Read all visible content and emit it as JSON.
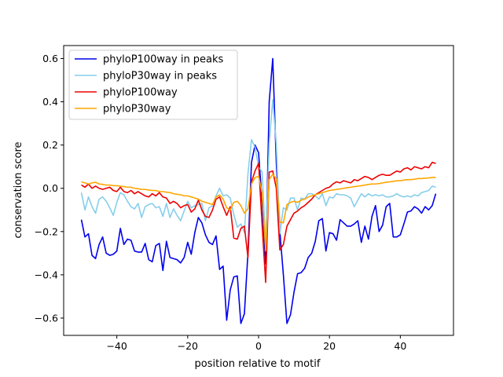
{
  "chart_data": {
    "type": "line",
    "title": "",
    "xlabel": "position relative to motif",
    "ylabel": "conservation score",
    "xlim": [
      -55.0,
      55.0
    ],
    "ylim": [
      -0.68,
      0.66
    ],
    "xticks": [
      -40,
      -20,
      0,
      20,
      40
    ],
    "yticks": [
      -0.6,
      -0.4,
      -0.2,
      0.0,
      0.2,
      0.4,
      0.6
    ],
    "xtick_labels": [
      "−40",
      "−20",
      "0",
      "20",
      "40"
    ],
    "ytick_labels": [
      "−0.6",
      "−0.4",
      "−0.2",
      "0.0",
      "0.2",
      "0.4",
      "0.6"
    ],
    "legend_position": "upper-left",
    "x": [
      -50,
      -49,
      -48,
      -47,
      -46,
      -45,
      -44,
      -43,
      -42,
      -41,
      -40,
      -39,
      -38,
      -37,
      -36,
      -35,
      -34,
      -33,
      -32,
      -31,
      -30,
      -29,
      -28,
      -27,
      -26,
      -25,
      -24,
      -23,
      -22,
      -21,
      -20,
      -19,
      -18,
      -17,
      -16,
      -15,
      -14,
      -13,
      -12,
      -11,
      -10,
      -9,
      -8,
      -7,
      -6,
      -5,
      -4,
      -3,
      -2,
      -1,
      0,
      1,
      2,
      3,
      4,
      5,
      6,
      7,
      8,
      9,
      10,
      11,
      12,
      13,
      14,
      15,
      16,
      17,
      18,
      19,
      20,
      21,
      22,
      23,
      24,
      25,
      26,
      27,
      28,
      29,
      30,
      31,
      32,
      33,
      34,
      35,
      36,
      37,
      38,
      39,
      40,
      41,
      42,
      43,
      44,
      45,
      46,
      47,
      48,
      49,
      50
    ],
    "series": [
      {
        "name": "phyloP100way in peaks",
        "color": "#0000ee",
        "values": [
          -0.145,
          -0.225,
          -0.21,
          -0.31,
          -0.325,
          -0.26,
          -0.225,
          -0.3,
          -0.31,
          -0.305,
          -0.29,
          -0.185,
          -0.26,
          -0.235,
          -0.24,
          -0.29,
          -0.295,
          -0.295,
          -0.255,
          -0.33,
          -0.34,
          -0.265,
          -0.255,
          -0.38,
          -0.245,
          -0.32,
          -0.325,
          -0.33,
          -0.345,
          -0.32,
          -0.25,
          -0.305,
          -0.205,
          -0.135,
          -0.16,
          -0.215,
          -0.25,
          -0.26,
          -0.22,
          -0.375,
          -0.36,
          -0.61,
          -0.47,
          -0.41,
          -0.405,
          -0.625,
          -0.58,
          -0.3,
          0.12,
          0.2,
          0.165,
          -0.065,
          -0.35,
          0.4,
          0.6,
          0.12,
          -0.2,
          -0.4,
          -0.625,
          -0.585,
          -0.48,
          -0.395,
          -0.39,
          -0.37,
          -0.32,
          -0.3,
          -0.245,
          -0.15,
          -0.14,
          -0.29,
          -0.205,
          -0.21,
          -0.24,
          -0.145,
          -0.16,
          -0.175,
          -0.175,
          -0.165,
          -0.15,
          -0.25,
          -0.175,
          -0.235,
          -0.13,
          -0.08,
          -0.2,
          -0.17,
          -0.085,
          -0.07,
          -0.225,
          -0.225,
          -0.215,
          -0.165,
          -0.11,
          -0.105,
          -0.085,
          -0.095,
          -0.115,
          -0.085,
          -0.1,
          -0.08,
          -0.025
        ]
      },
      {
        "name": "phyloP30way in peaks",
        "color": "#87ceeb",
        "values": [
          -0.02,
          -0.1,
          -0.04,
          -0.085,
          -0.115,
          -0.05,
          -0.04,
          -0.06,
          -0.09,
          -0.125,
          -0.065,
          -0.02,
          -0.03,
          -0.06,
          -0.085,
          -0.095,
          -0.07,
          -0.135,
          -0.085,
          -0.075,
          -0.07,
          -0.09,
          -0.085,
          -0.13,
          -0.07,
          -0.135,
          -0.095,
          -0.125,
          -0.15,
          -0.105,
          -0.06,
          -0.09,
          -0.08,
          -0.075,
          -0.07,
          -0.15,
          -0.09,
          -0.08,
          -0.035,
          0.0,
          -0.035,
          -0.03,
          -0.045,
          -0.12,
          -0.18,
          -0.165,
          -0.205,
          0.065,
          0.225,
          0.19,
          0.1,
          0.075,
          -0.26,
          0.21,
          0.41,
          0.205,
          -0.21,
          -0.09,
          -0.1,
          -0.045,
          -0.045,
          -0.1,
          -0.045,
          -0.05,
          -0.025,
          -0.025,
          -0.035,
          -0.05,
          -0.025,
          -0.08,
          -0.04,
          -0.045,
          -0.025,
          -0.03,
          -0.03,
          -0.035,
          -0.045,
          -0.085,
          -0.055,
          -0.025,
          -0.04,
          -0.025,
          -0.035,
          -0.03,
          -0.035,
          -0.03,
          -0.04,
          -0.04,
          -0.035,
          -0.025,
          -0.035,
          -0.04,
          -0.035,
          -0.04,
          -0.03,
          -0.035,
          -0.02,
          -0.015,
          -0.01,
          0.01,
          0.005
        ]
      },
      {
        "name": "phyloP100way",
        "color": "#ee0000",
        "values": [
          0.015,
          0.005,
          0.02,
          0.0,
          0.01,
          0.0,
          -0.005,
          0.0,
          0.005,
          -0.01,
          -0.015,
          0.005,
          -0.015,
          -0.02,
          -0.01,
          -0.025,
          -0.015,
          -0.025,
          -0.035,
          -0.04,
          -0.025,
          -0.035,
          -0.02,
          -0.04,
          -0.045,
          -0.07,
          -0.06,
          -0.07,
          -0.09,
          -0.08,
          -0.075,
          -0.11,
          -0.095,
          -0.055,
          -0.1,
          -0.13,
          -0.135,
          -0.1,
          -0.05,
          -0.04,
          -0.085,
          -0.125,
          -0.085,
          -0.23,
          -0.235,
          -0.185,
          -0.175,
          -0.32,
          0.03,
          0.08,
          0.115,
          -0.17,
          -0.435,
          0.075,
          0.08,
          -0.0,
          -0.285,
          -0.26,
          -0.175,
          -0.145,
          -0.115,
          -0.105,
          -0.09,
          -0.08,
          -0.065,
          -0.05,
          -0.03,
          -0.02,
          -0.01,
          0.0,
          0.005,
          0.02,
          0.03,
          0.025,
          0.035,
          0.03,
          0.025,
          0.04,
          0.035,
          0.045,
          0.055,
          0.05,
          0.04,
          0.05,
          0.06,
          0.065,
          0.06,
          0.06,
          0.07,
          0.08,
          0.075,
          0.09,
          0.095,
          0.085,
          0.1,
          0.095,
          0.09,
          0.1,
          0.095,
          0.12,
          0.115
        ]
      },
      {
        "name": "phyloP30way",
        "color": "#ffa500",
        "values": [
          0.03,
          0.025,
          0.02,
          0.025,
          0.028,
          0.02,
          0.018,
          0.015,
          0.015,
          0.012,
          0.012,
          0.01,
          0.008,
          0.005,
          0.005,
          0.0,
          -0.002,
          -0.005,
          -0.005,
          -0.008,
          -0.01,
          -0.01,
          -0.015,
          -0.015,
          -0.018,
          -0.02,
          -0.025,
          -0.028,
          -0.03,
          -0.035,
          -0.035,
          -0.04,
          -0.045,
          -0.05,
          -0.06,
          -0.065,
          -0.07,
          -0.075,
          -0.04,
          -0.03,
          -0.05,
          -0.09,
          -0.1,
          -0.065,
          -0.06,
          -0.08,
          -0.115,
          -0.095,
          0.02,
          0.05,
          0.055,
          -0.02,
          -0.29,
          0.04,
          0.065,
          0.045,
          -0.155,
          -0.16,
          -0.075,
          -0.065,
          -0.06,
          -0.065,
          -0.055,
          -0.05,
          -0.04,
          -0.035,
          -0.03,
          -0.025,
          -0.02,
          -0.015,
          -0.01,
          -0.008,
          -0.005,
          -0.003,
          0.0,
          0.003,
          0.005,
          0.008,
          0.01,
          0.012,
          0.015,
          0.018,
          0.02,
          0.02,
          0.022,
          0.025,
          0.028,
          0.03,
          0.032,
          0.035,
          0.035,
          0.038,
          0.04,
          0.04,
          0.042,
          0.045,
          0.045,
          0.047,
          0.048,
          0.05,
          0.05
        ]
      }
    ]
  }
}
